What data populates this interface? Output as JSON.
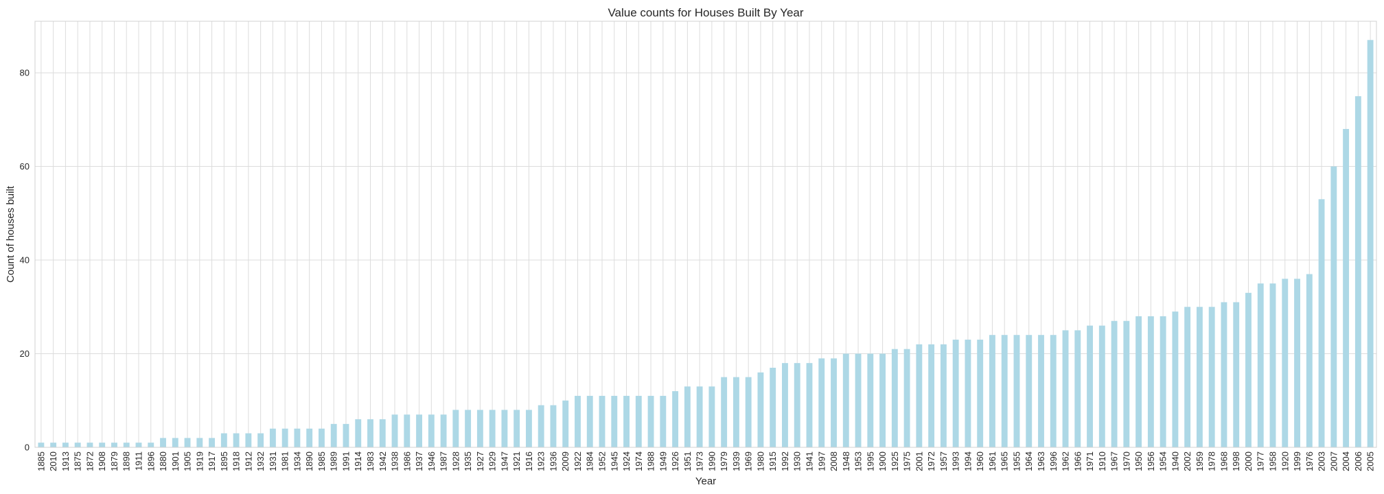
{
  "chart_data": {
    "type": "bar",
    "title": "Value counts for Houses Built By Year",
    "xlabel": "Year",
    "ylabel": "Count of houses built",
    "ylim": [
      0,
      91
    ],
    "yticks": [
      0,
      20,
      40,
      60,
      80
    ],
    "grid": true,
    "bar_color": "#add8e6",
    "categories": [
      "1885",
      "2010",
      "1913",
      "1875",
      "1872",
      "1908",
      "1879",
      "1898",
      "1911",
      "1896",
      "1880",
      "1901",
      "1905",
      "1919",
      "1917",
      "1895",
      "1918",
      "1912",
      "1932",
      "1931",
      "1981",
      "1934",
      "1890",
      "1985",
      "1989",
      "1991",
      "1914",
      "1983",
      "1942",
      "1938",
      "1986",
      "1937",
      "1946",
      "1987",
      "1928",
      "1935",
      "1927",
      "1929",
      "1947",
      "1921",
      "1916",
      "1923",
      "1936",
      "2009",
      "1922",
      "1984",
      "1952",
      "1945",
      "1924",
      "1974",
      "1988",
      "1949",
      "1926",
      "1951",
      "1973",
      "1990",
      "1979",
      "1939",
      "1969",
      "1980",
      "1915",
      "1992",
      "1930",
      "1941",
      "1997",
      "2008",
      "1948",
      "1953",
      "1995",
      "1900",
      "1925",
      "1975",
      "2001",
      "1972",
      "1957",
      "1993",
      "1994",
      "1960",
      "1961",
      "1965",
      "1955",
      "1964",
      "1963",
      "1996",
      "1962",
      "1966",
      "1971",
      "1910",
      "1967",
      "1970",
      "1950",
      "1956",
      "1954",
      "1940",
      "2002",
      "1959",
      "1978",
      "1968",
      "1998",
      "2000",
      "1977",
      "1958",
      "1920",
      "1999",
      "1976",
      "2003",
      "2007",
      "2004",
      "2006",
      "2005"
    ],
    "values": [
      1,
      1,
      1,
      1,
      1,
      1,
      1,
      1,
      1,
      1,
      2,
      2,
      2,
      2,
      2,
      3,
      3,
      3,
      3,
      4,
      4,
      4,
      4,
      4,
      5,
      5,
      6,
      6,
      6,
      7,
      7,
      7,
      7,
      7,
      8,
      8,
      8,
      8,
      8,
      8,
      8,
      9,
      9,
      10,
      11,
      11,
      11,
      11,
      11,
      11,
      11,
      11,
      12,
      13,
      13,
      13,
      15,
      15,
      15,
      16,
      17,
      18,
      18,
      18,
      19,
      19,
      20,
      20,
      20,
      20,
      21,
      21,
      22,
      22,
      22,
      23,
      23,
      23,
      24,
      24,
      24,
      24,
      24,
      24,
      25,
      25,
      26,
      26,
      27,
      27,
      28,
      28,
      28,
      29,
      30,
      30,
      30,
      31,
      31,
      33,
      35,
      35,
      36,
      36,
      37,
      53,
      60,
      68,
      75,
      87
    ]
  }
}
